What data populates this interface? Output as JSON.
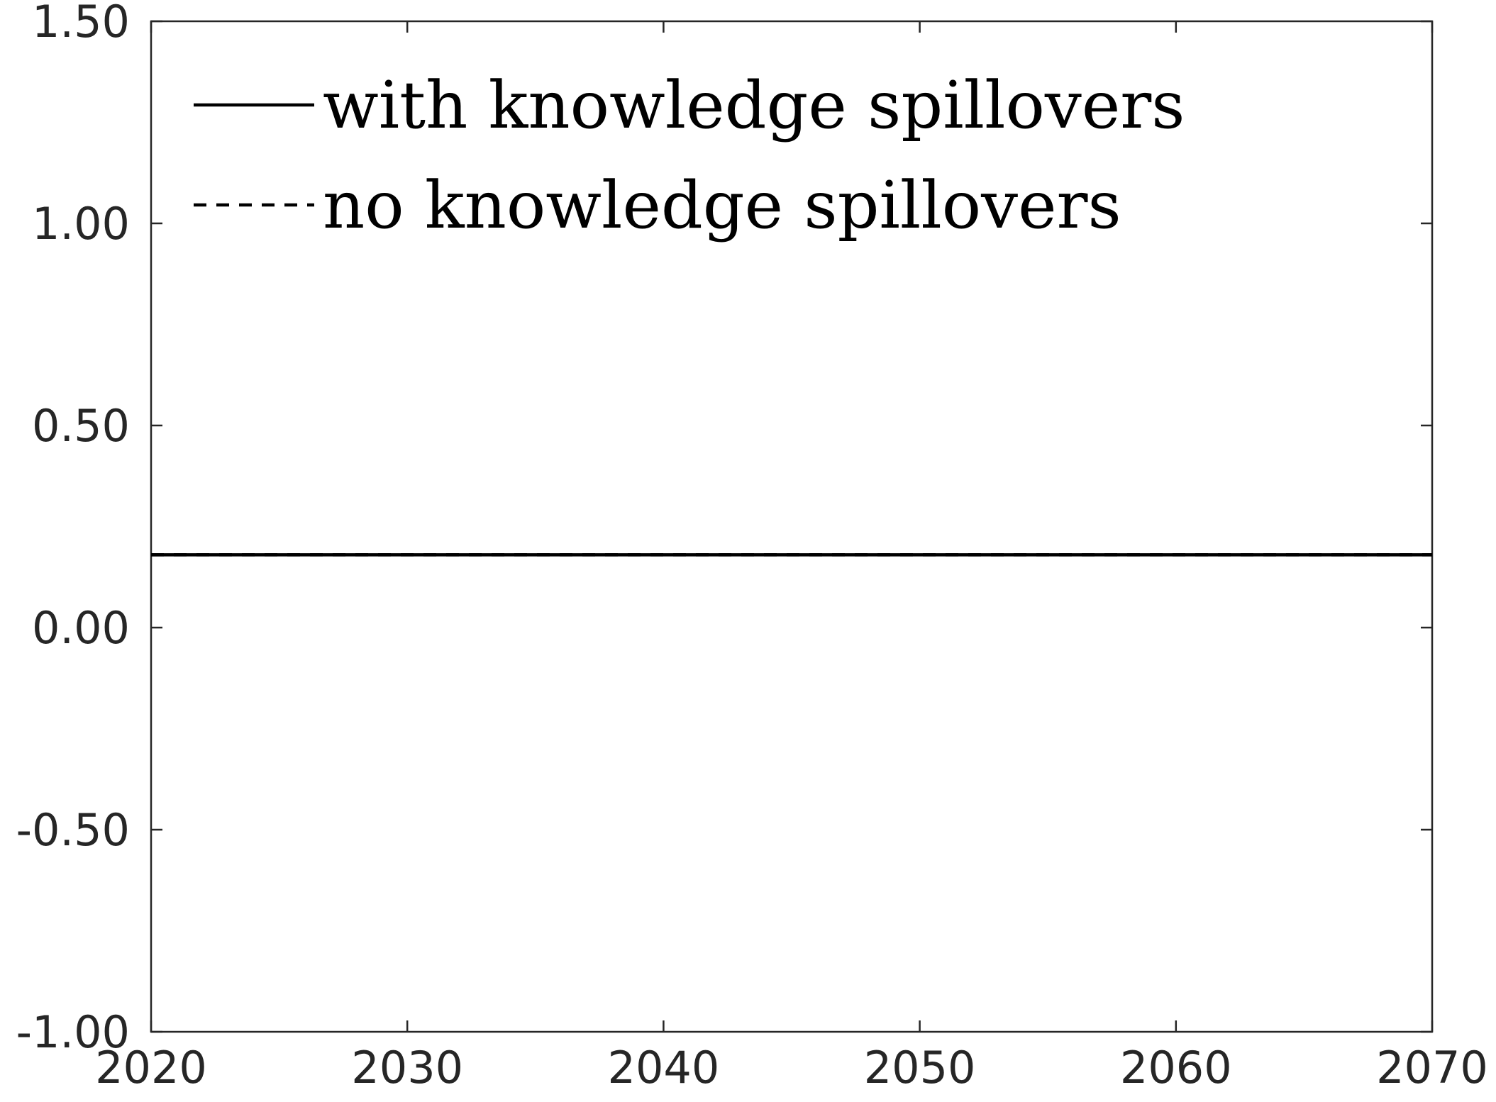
{
  "chart_data": {
    "type": "line",
    "title": "",
    "xlabel": "",
    "ylabel": "",
    "xlim": [
      2020,
      2070
    ],
    "ylim": [
      -1.0,
      1.5
    ],
    "x_ticks": [
      2020,
      2030,
      2040,
      2050,
      2060,
      2070
    ],
    "x_tick_labels": [
      "2020",
      "2030",
      "2040",
      "2050",
      "2060",
      "2070"
    ],
    "y_ticks": [
      -1.0,
      -0.5,
      0.0,
      0.5,
      1.0,
      1.5
    ],
    "y_tick_labels": [
      "-1.00",
      "-0.50",
      "0.00",
      "0.50",
      "1.00",
      "1.50"
    ],
    "grid": false,
    "legend_position": "top-left",
    "series": [
      {
        "name": "with knowledge spillovers",
        "style": "solid",
        "color": "#000000",
        "x": [
          2020,
          2070
        ],
        "y": [
          0.18,
          0.18
        ]
      },
      {
        "name": "no knowledge spillovers",
        "style": "dashed",
        "color": "#000000",
        "x": [
          2020,
          2070
        ],
        "y": [
          0.18,
          0.18
        ]
      }
    ]
  }
}
